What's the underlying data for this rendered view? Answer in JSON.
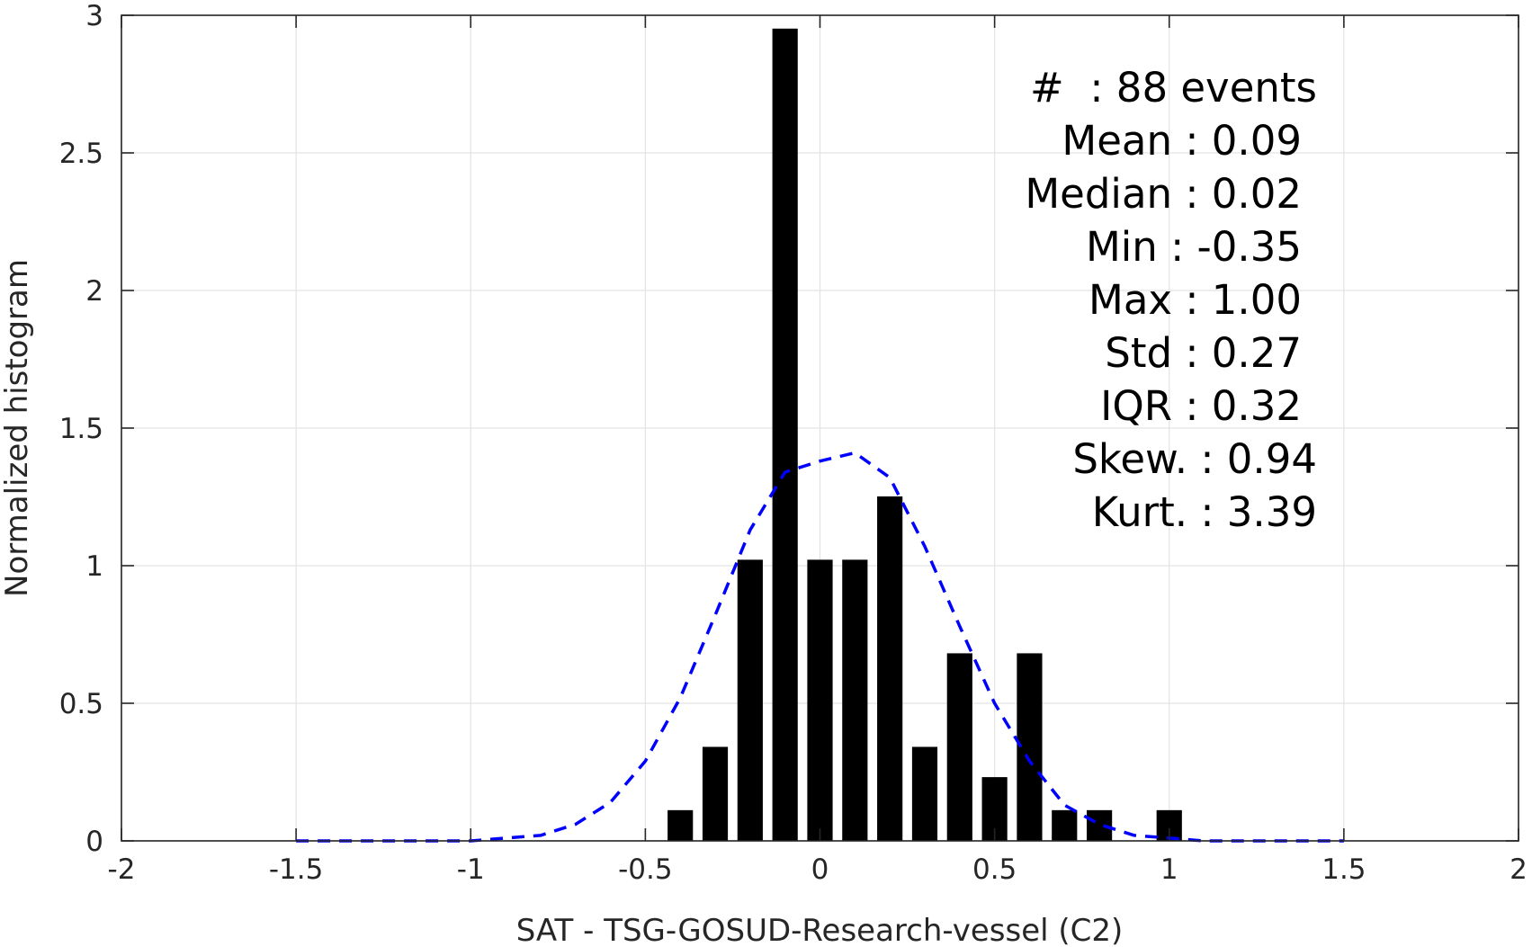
{
  "chart_data": {
    "type": "bar",
    "xlabel": "SAT - TSG-GOSUD-Research-vessel (C2)",
    "ylabel": "Normalized histogram",
    "xlim": [
      -2,
      2
    ],
    "ylim": [
      0,
      3
    ],
    "grid": true,
    "x_ticks": [
      -2,
      -1.5,
      -1,
      -0.5,
      0,
      0.5,
      1,
      1.5,
      2
    ],
    "x_tick_labels": [
      "-2",
      "-1.5",
      "-1",
      "-0.5",
      "0",
      "0.5",
      "1",
      "1.5",
      "2"
    ],
    "y_ticks": [
      0,
      0.5,
      1,
      1.5,
      2,
      2.5,
      3
    ],
    "y_tick_labels": [
      "0",
      "0.5",
      "1",
      "1.5",
      "2",
      "2.5",
      "3"
    ],
    "bar_width": 0.07,
    "bars": {
      "x": [
        -0.4,
        -0.3,
        -0.2,
        -0.1,
        0.0,
        0.1,
        0.2,
        0.3,
        0.4,
        0.5,
        0.6,
        0.7,
        0.8,
        0.9,
        1.0
      ],
      "y": [
        0.11,
        0.34,
        1.02,
        2.95,
        1.02,
        1.02,
        1.25,
        0.34,
        0.68,
        0.23,
        0.68,
        0.11,
        0.11,
        0,
        0.11
      ],
      "color": "#000000"
    },
    "fit_curve": {
      "style": "dashed",
      "color": "#0000ff",
      "x": [
        -1.5,
        -1.4,
        -1.3,
        -1.2,
        -1.1,
        -1.0,
        -0.9,
        -0.8,
        -0.7,
        -0.6,
        -0.5,
        -0.4,
        -0.3,
        -0.2,
        -0.1,
        0.0,
        0.1,
        0.2,
        0.3,
        0.4,
        0.5,
        0.6,
        0.7,
        0.8,
        0.9,
        1.0,
        1.1,
        1.2,
        1.3,
        1.4,
        1.5
      ],
      "y": [
        0.0,
        0.0,
        0.0,
        0.0,
        0.0,
        0.0,
        0.01,
        0.02,
        0.06,
        0.14,
        0.29,
        0.52,
        0.82,
        1.13,
        1.34,
        1.38,
        1.41,
        1.32,
        1.07,
        0.78,
        0.5,
        0.29,
        0.13,
        0.06,
        0.02,
        0.01,
        0.0,
        0.0,
        0.0,
        0.0,
        0.0
      ]
    },
    "annotations": [
      {
        "name": "count",
        "text": "#  : 88 events"
      },
      {
        "name": "mean",
        "text": "Mean : 0.09"
      },
      {
        "name": "median",
        "text": "Median : 0.02"
      },
      {
        "name": "min",
        "text": "Min : -0.35"
      },
      {
        "name": "max",
        "text": "Max : 1.00"
      },
      {
        "name": "std",
        "text": "Std : 0.27"
      },
      {
        "name": "iqr",
        "text": "IQR : 0.32"
      },
      {
        "name": "skew",
        "text": "Skew. : 0.94"
      },
      {
        "name": "kurt",
        "text": "Kurt. : 3.39"
      }
    ],
    "colors": {
      "grid": "#e3e3e3",
      "axis": "#262626",
      "text": "#262626"
    }
  }
}
